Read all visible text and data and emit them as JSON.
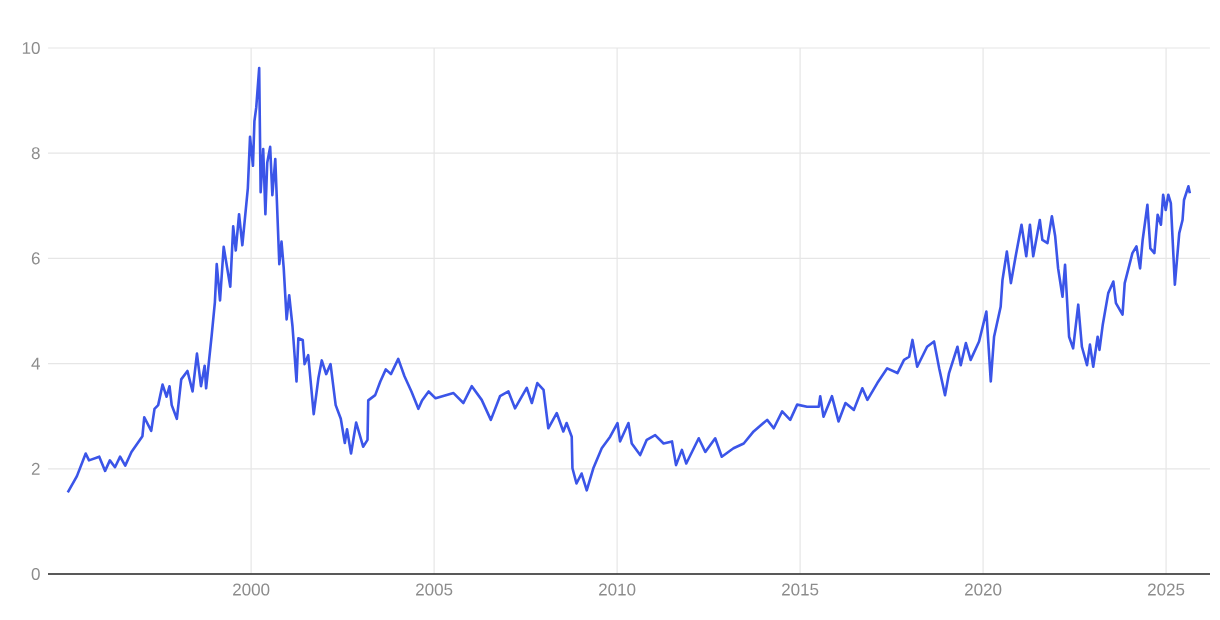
{
  "chart_data": {
    "type": "line",
    "color": "#3b55e8",
    "marker": "none",
    "grid": true,
    "xlim": [
      1994.45,
      2026.2
    ],
    "ylim": [
      0,
      10
    ],
    "xticks": [
      2000,
      2005,
      2010,
      2015,
      2020,
      2025
    ],
    "yticks": [
      0,
      2,
      4,
      6,
      8,
      10
    ],
    "x": [
      1994.99,
      1995.24,
      1995.48,
      1995.57,
      1995.85,
      1996.01,
      1996.14,
      1996.28,
      1996.42,
      1996.56,
      1996.73,
      1997.03,
      1997.08,
      1997.27,
      1997.36,
      1997.46,
      1997.58,
      1997.69,
      1997.77,
      1997.83,
      1997.97,
      1998.09,
      1998.26,
      1998.4,
      1998.52,
      1998.63,
      1998.73,
      1998.77,
      1998.92,
      1999.01,
      1999.06,
      1999.15,
      1999.25,
      1999.43,
      1999.51,
      1999.58,
      1999.67,
      1999.76,
      1999.91,
      1999.97,
      2000.05,
      2000.09,
      2000.14,
      2000.22,
      2000.26,
      2000.33,
      2000.39,
      2000.44,
      2000.52,
      2000.58,
      2000.66,
      2000.77,
      2000.83,
      2000.89,
      2000.97,
      2001.04,
      2001.13,
      2001.24,
      2001.29,
      2001.41,
      2001.46,
      2001.56,
      2001.71,
      2001.84,
      2001.93,
      2002.05,
      2002.17,
      2002.31,
      2002.45,
      2002.56,
      2002.62,
      2002.73,
      2002.87,
      2003.06,
      2003.18,
      2003.2,
      2003.39,
      2003.53,
      2003.68,
      2003.82,
      2004.02,
      2004.19,
      2004.38,
      2004.57,
      2004.67,
      2004.85,
      2005.04,
      2005.53,
      2005.8,
      2006.03,
      2006.3,
      2006.55,
      2006.8,
      2007.03,
      2007.21,
      2007.53,
      2007.67,
      2007.82,
      2007.99,
      2008.12,
      2008.35,
      2008.53,
      2008.62,
      2008.76,
      2008.78,
      2008.89,
      2009.03,
      2009.17,
      2009.35,
      2009.58,
      2009.81,
      2010.01,
      2010.08,
      2010.31,
      2010.4,
      2010.63,
      2010.81,
      2011.04,
      2011.27,
      2011.5,
      2011.61,
      2011.77,
      2011.89,
      2012.23,
      2012.41,
      2012.68,
      2012.86,
      2013.18,
      2013.46,
      2013.73,
      2014.1,
      2014.28,
      2014.51,
      2014.73,
      2014.92,
      2015.19,
      2015.51,
      2015.55,
      2015.64,
      2015.87,
      2016.05,
      2016.24,
      2016.47,
      2016.7,
      2016.84,
      2017.11,
      2017.38,
      2017.66,
      2017.84,
      2017.98,
      2018.07,
      2018.2,
      2018.47,
      2018.66,
      2018.8,
      2018.96,
      2019.07,
      2019.3,
      2019.39,
      2019.53,
      2019.66,
      2019.89,
      2020.09,
      2020.21,
      2020.3,
      2020.48,
      2020.53,
      2020.65,
      2020.76,
      2020.89,
      2021.05,
      2021.18,
      2021.28,
      2021.37,
      2021.55,
      2021.62,
      2021.76,
      2021.88,
      2021.97,
      2022.05,
      2022.17,
      2022.24,
      2022.35,
      2022.46,
      2022.6,
      2022.7,
      2022.84,
      2022.92,
      2023.01,
      2023.13,
      2023.18,
      2023.27,
      2023.42,
      2023.56,
      2023.63,
      2023.81,
      2023.87,
      2024.08,
      2024.19,
      2024.29,
      2024.36,
      2024.49,
      2024.57,
      2024.68,
      2024.77,
      2024.86,
      2024.92,
      2024.99,
      2025.06,
      2025.13,
      2025.24,
      2025.36,
      2025.45,
      2025.49,
      2025.61,
      2025.65
    ],
    "values": [
      1.55,
      1.86,
      2.29,
      2.16,
      2.23,
      1.96,
      2.16,
      2.03,
      2.23,
      2.06,
      2.32,
      2.62,
      2.98,
      2.72,
      3.14,
      3.21,
      3.6,
      3.37,
      3.57,
      3.21,
      2.95,
      3.7,
      3.86,
      3.47,
      4.19,
      3.57,
      3.96,
      3.53,
      4.52,
      5.17,
      5.89,
      5.2,
      6.22,
      5.46,
      6.61,
      6.15,
      6.84,
      6.25,
      7.33,
      8.31,
      7.76,
      8.61,
      8.87,
      9.62,
      7.26,
      8.08,
      6.84,
      7.82,
      8.12,
      7.2,
      7.89,
      5.89,
      6.32,
      5.82,
      4.84,
      5.3,
      4.71,
      3.66,
      4.48,
      4.45,
      3.99,
      4.16,
      3.04,
      3.73,
      4.06,
      3.8,
      3.99,
      3.21,
      2.95,
      2.49,
      2.75,
      2.29,
      2.88,
      2.42,
      2.55,
      3.3,
      3.4,
      3.66,
      3.89,
      3.8,
      4.09,
      3.76,
      3.47,
      3.14,
      3.3,
      3.47,
      3.34,
      3.44,
      3.25,
      3.57,
      3.31,
      2.93,
      3.38,
      3.47,
      3.15,
      3.54,
      3.25,
      3.63,
      3.5,
      2.77,
      3.06,
      2.71,
      2.87,
      2.61,
      2.01,
      1.72,
      1.91,
      1.59,
      2.01,
      2.39,
      2.61,
      2.87,
      2.52,
      2.87,
      2.48,
      2.26,
      2.55,
      2.64,
      2.48,
      2.52,
      2.07,
      2.36,
      2.1,
      2.58,
      2.32,
      2.58,
      2.23,
      2.39,
      2.48,
      2.71,
      2.93,
      2.77,
      3.09,
      2.93,
      3.22,
      3.18,
      3.18,
      3.38,
      2.99,
      3.38,
      2.9,
      3.25,
      3.12,
      3.53,
      3.31,
      3.63,
      3.91,
      3.82,
      4.07,
      4.13,
      4.45,
      3.94,
      4.32,
      4.42,
      3.91,
      3.4,
      3.82,
      4.32,
      3.97,
      4.39,
      4.07,
      4.42,
      4.99,
      3.66,
      4.51,
      5.08,
      5.59,
      6.13,
      5.53,
      6.04,
      6.64,
      6.04,
      6.64,
      6.04,
      6.73,
      6.35,
      6.29,
      6.8,
      6.42,
      5.81,
      5.27,
      5.88,
      4.51,
      4.29,
      5.12,
      4.32,
      3.97,
      4.36,
      3.94,
      4.51,
      4.26,
      4.74,
      5.34,
      5.56,
      5.15,
      4.93,
      5.53,
      6.1,
      6.23,
      5.81,
      6.35,
      7.02,
      6.19,
      6.1,
      6.83,
      6.64,
      7.21,
      6.92,
      7.21,
      7.05,
      5.5,
      6.48,
      6.73,
      7.11,
      7.37,
      7.24
    ]
  }
}
